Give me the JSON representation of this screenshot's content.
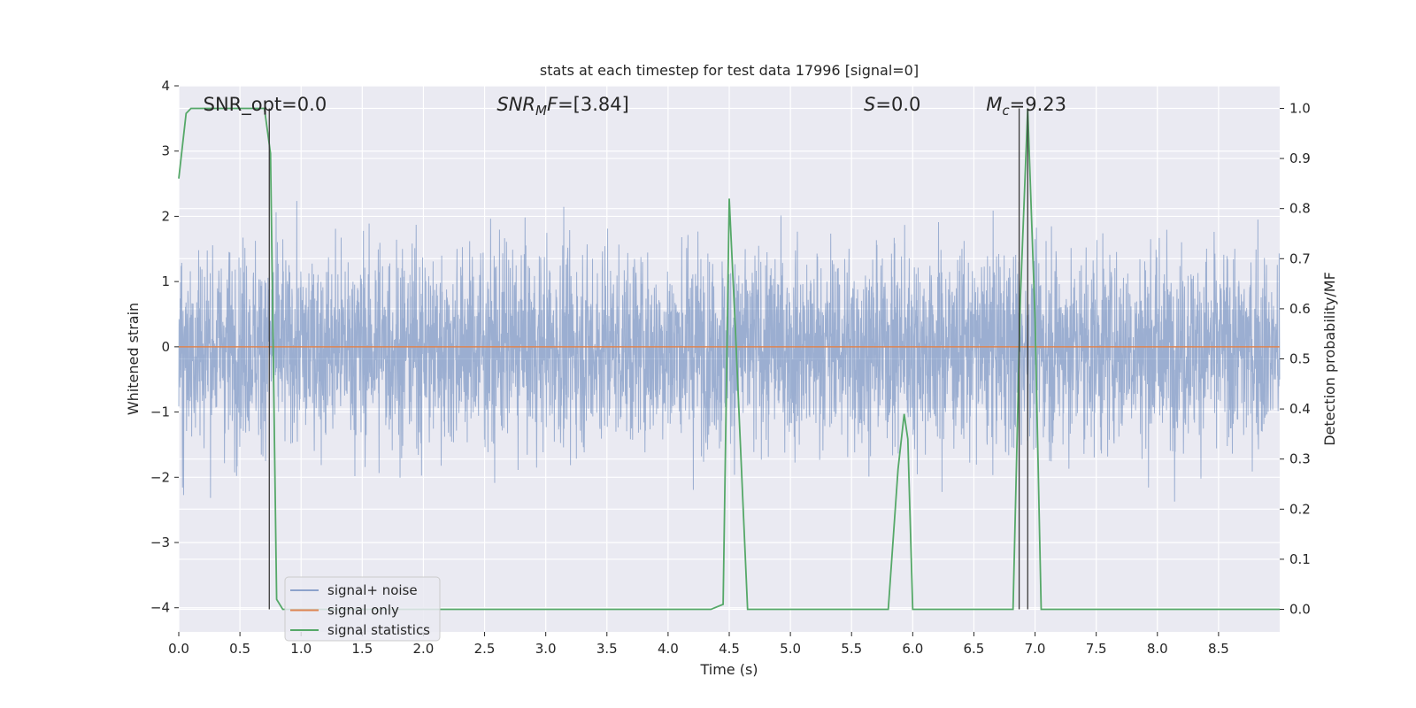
{
  "chart_data": {
    "type": "line",
    "title": "stats at each timestep for test data 17996 [signal=0]",
    "xlabel": "Time (s)",
    "ylabel": "Whitened strain",
    "y2label": "Detection probability/MF",
    "xlim": [
      0,
      9.0
    ],
    "ylim": [
      -4.37,
      4.0
    ],
    "y2lim": [
      -0.045,
      1.045
    ],
    "xticks": [
      0.0,
      0.5,
      1.0,
      1.5,
      2.0,
      2.5,
      3.0,
      3.5,
      4.0,
      4.5,
      5.0,
      5.5,
      6.0,
      6.5,
      7.0,
      7.5,
      8.0,
      8.5
    ],
    "xtick_labels": [
      "0.0",
      "0.5",
      "1.0",
      "1.5",
      "2.0",
      "2.5",
      "3.0",
      "3.5",
      "4.0",
      "4.5",
      "5.0",
      "5.5",
      "6.0",
      "6.5",
      "7.0",
      "7.5",
      "8.0",
      "8.5"
    ],
    "yticks": [
      4,
      3,
      2,
      1,
      0,
      -1,
      -2,
      -3,
      -4
    ],
    "ytick_labels": [
      "4",
      "3",
      "2",
      "1",
      "0",
      "−1",
      "−2",
      "−3",
      "−4"
    ],
    "y2ticks": [
      1.0,
      0.9,
      0.8,
      0.7,
      0.6,
      0.5,
      0.4,
      0.3,
      0.2,
      0.1,
      0.0
    ],
    "y2tick_labels": [
      "1.0",
      "0.9",
      "0.8",
      "0.7",
      "0.6",
      "0.5",
      "0.4",
      "0.3",
      "0.2",
      "0.1",
      "0.0"
    ],
    "grid": true,
    "legend_position": "lower-left",
    "annotations": [
      {
        "text": "SNR_opt=0.0",
        "x": 0.2
      },
      {
        "text": "SNR",
        "sub": "M",
        "tail": "F=[3.84]",
        "x": 2.6
      },
      {
        "text": "S",
        "tail": "=0.0",
        "x": 5.6
      },
      {
        "text": "M",
        "sub": "c",
        "tail": "=9.23",
        "x": 6.6
      }
    ],
    "vlines": [
      0.74,
      6.87,
      6.94
    ],
    "series": [
      {
        "name": "signal+ noise",
        "color": "#4c72b0",
        "axis": "left",
        "description": "whitened noise",
        "band_sigma": 1.0
      },
      {
        "name": "signal only",
        "color": "#dd8452",
        "axis": "left",
        "constant": 0.0
      },
      {
        "name": "signal statistics",
        "color": "#55a868",
        "axis": "right",
        "x": [
          0.0,
          0.06,
          0.1,
          0.2,
          0.3,
          0.4,
          0.5,
          0.6,
          0.7,
          0.75,
          0.8,
          0.85,
          1.0,
          2.0,
          3.0,
          4.0,
          4.35,
          4.45,
          4.5,
          4.55,
          4.65,
          5.0,
          5.5,
          5.8,
          5.88,
          5.93,
          5.96,
          6.0,
          6.1,
          6.5,
          6.75,
          6.82,
          6.88,
          6.94,
          7.0,
          7.05,
          7.1,
          7.2,
          7.3,
          8.0,
          9.0
        ],
        "y": [
          0.86,
          0.99,
          1.0,
          1.0,
          1.0,
          1.0,
          1.0,
          1.0,
          1.0,
          0.91,
          0.02,
          0.0,
          0.0,
          0.0,
          0.0,
          0.0,
          0.0,
          0.01,
          0.82,
          0.56,
          0.0,
          0.0,
          0.0,
          0.0,
          0.28,
          0.39,
          0.34,
          0.0,
          0.0,
          0.0,
          0.0,
          0.0,
          0.62,
          1.0,
          0.58,
          0.0,
          0.0,
          0.0,
          0.0,
          0.0,
          0.0
        ]
      }
    ]
  }
}
